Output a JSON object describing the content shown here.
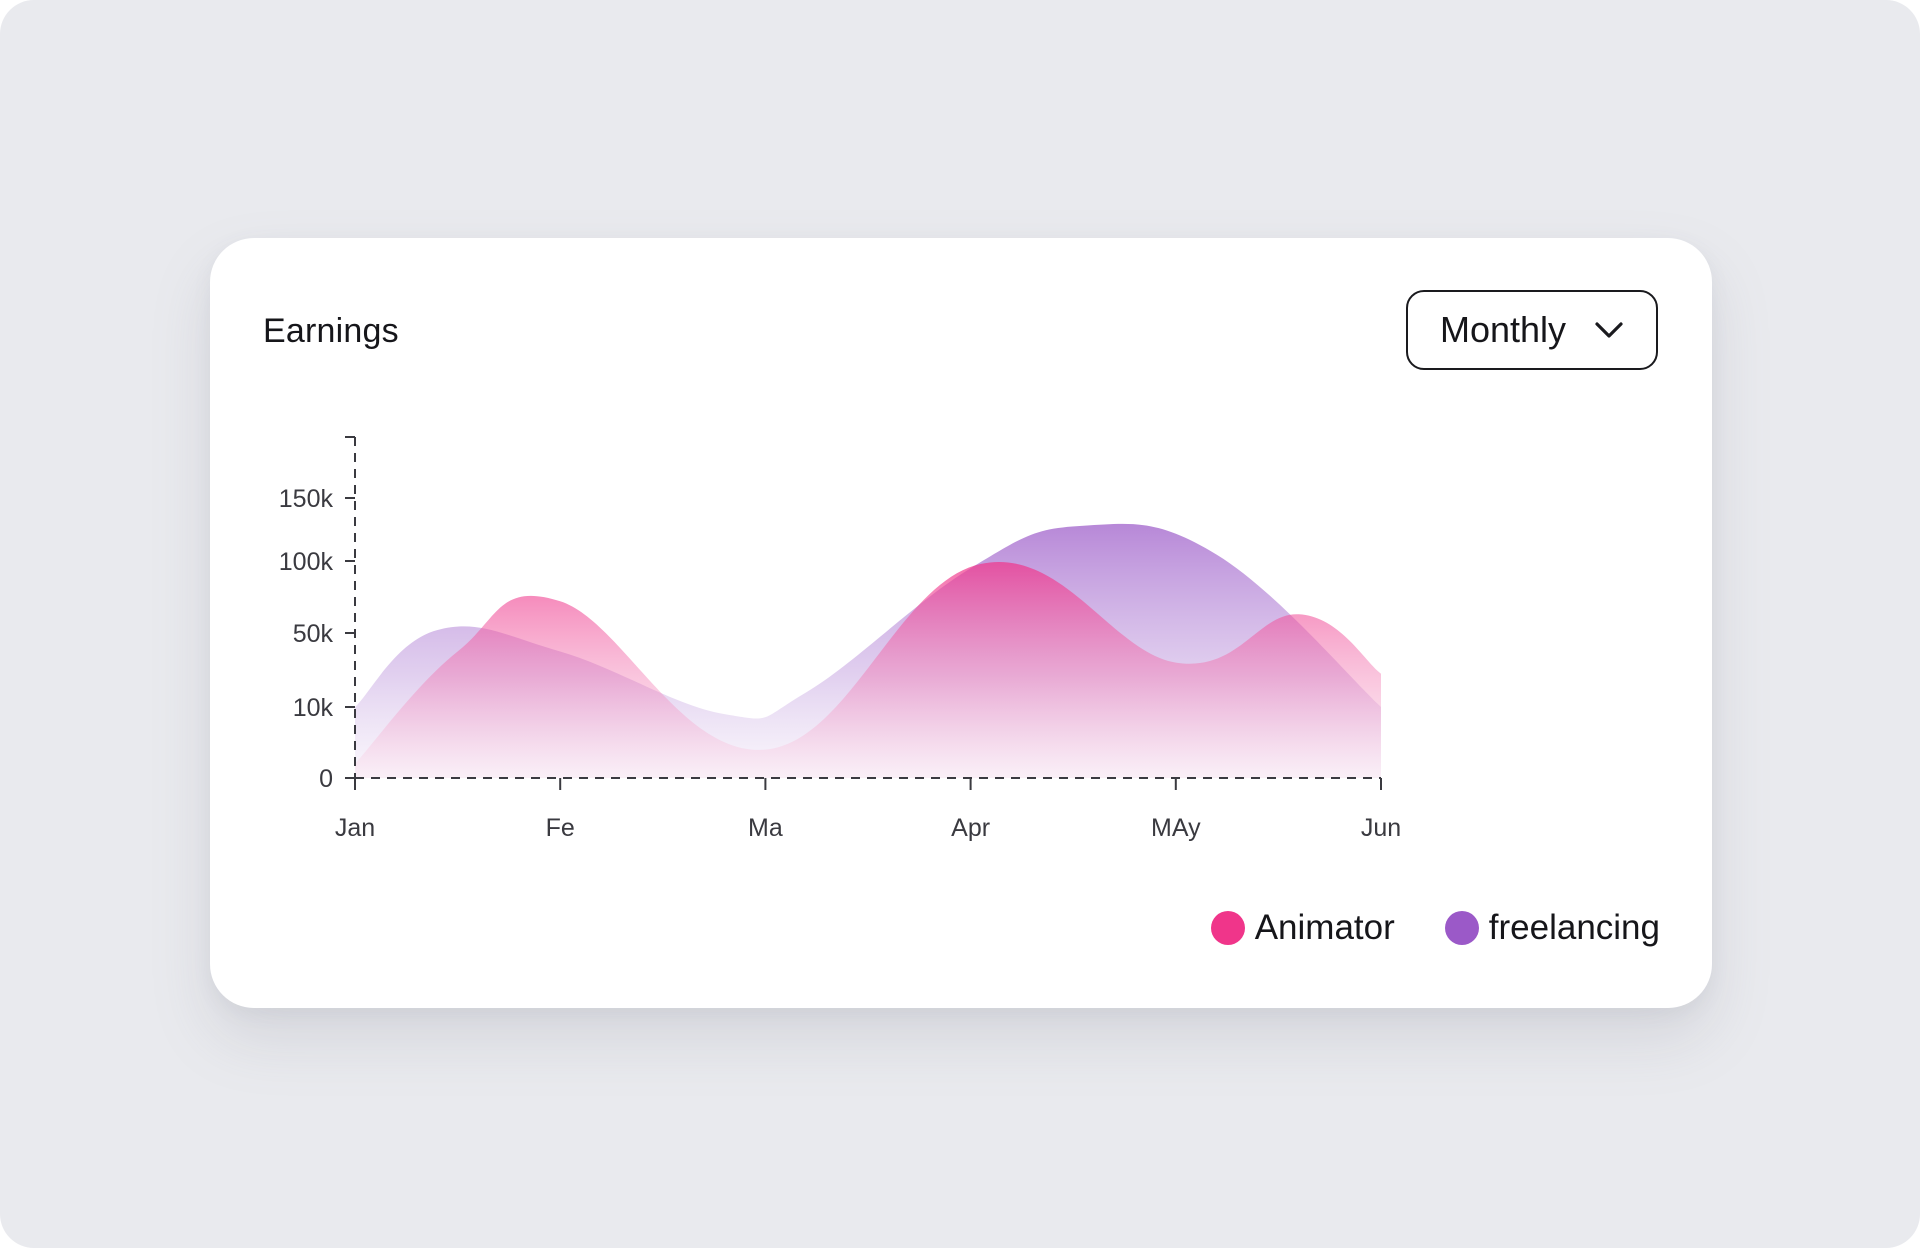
{
  "card": {
    "title": "Earnings",
    "period_select": {
      "value": "Monthly",
      "icon": "chevron-down-icon"
    }
  },
  "chart_data": {
    "type": "area",
    "title": "Earnings",
    "xlabel": "",
    "ylabel": "",
    "categories": [
      "Jan",
      "Fe",
      "Ma",
      "Apr",
      "MAy",
      "Jun"
    ],
    "y_ticks": [
      {
        "value": 0,
        "label": "0"
      },
      {
        "value": 10,
        "label": "10k"
      },
      {
        "value": 50,
        "label": "50k"
      },
      {
        "value": 100,
        "label": "100k"
      },
      {
        "value": 150,
        "label": "150k"
      }
    ],
    "grid": false,
    "legend_position": "bottom-right",
    "smooth": true,
    "series": [
      {
        "name": "freelancing",
        "color": "#9b59c8",
        "points": [
          {
            "x": 0.0,
            "y": 10
          },
          {
            "x": 0.4,
            "y": 52
          },
          {
            "x": 1.0,
            "y": 40
          },
          {
            "x": 1.8,
            "y": 9
          },
          {
            "x": 2.2,
            "y": 18
          },
          {
            "x": 3.0,
            "y": 95
          },
          {
            "x": 3.55,
            "y": 128
          },
          {
            "x": 4.2,
            "y": 105
          },
          {
            "x": 5.0,
            "y": 10
          }
        ]
      },
      {
        "name": "Animator",
        "color": "#f0358a",
        "points": [
          {
            "x": 0.0,
            "y": 2
          },
          {
            "x": 0.5,
            "y": 40
          },
          {
            "x": 1.0,
            "y": 72
          },
          {
            "x": 2.0,
            "y": 4
          },
          {
            "x": 3.05,
            "y": 98
          },
          {
            "x": 4.0,
            "y": 34
          },
          {
            "x": 4.6,
            "y": 63
          },
          {
            "x": 5.0,
            "y": 28
          }
        ]
      }
    ]
  },
  "legend": [
    {
      "label": "Animator",
      "color": "#f0358a"
    },
    {
      "label": "freelancing",
      "color": "#9b59c8"
    }
  ]
}
